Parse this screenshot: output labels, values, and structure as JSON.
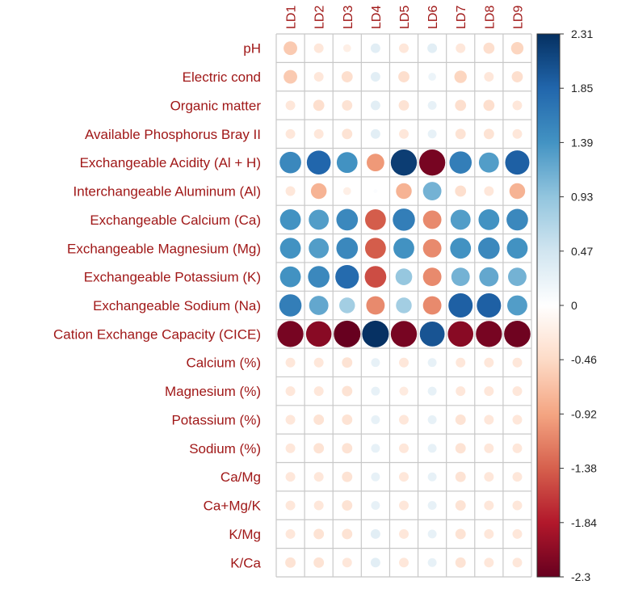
{
  "chart_data": {
    "type": "heatmap",
    "style": "corrplot-circle",
    "columns": [
      "LD1",
      "LD2",
      "LD3",
      "LD4",
      "LD5",
      "LD6",
      "LD7",
      "LD8",
      "LD9"
    ],
    "rows": [
      "pH",
      "Electric cond",
      "Organic matter",
      "Available Phosphorus Bray II",
      "Exchangeable Acidity (Al + H)",
      "Interchangeable Aluminum (Al)",
      "Exchangeable Calcium (Ca)",
      "Exchangeable Magnesium (Mg)",
      "Exchangeable Potassium (K)",
      "Exchangeable Sodium (Na)",
      "Cation Exchange Capacity (CICE)",
      "Calcium (%)",
      "Magnesium (%)",
      "Potassium (%)",
      "Sodium (%)",
      "Ca/Mg",
      "Ca+Mg/K",
      "K/Mg",
      "K/Ca"
    ],
    "values": [
      [
        -0.6,
        -0.3,
        -0.2,
        0.3,
        -0.3,
        0.3,
        -0.3,
        -0.4,
        -0.5
      ],
      [
        -0.6,
        -0.3,
        -0.4,
        0.3,
        -0.4,
        0.2,
        -0.5,
        -0.3,
        -0.4
      ],
      [
        -0.3,
        -0.4,
        -0.35,
        0.3,
        -0.35,
        0.25,
        -0.4,
        -0.4,
        -0.3
      ],
      [
        -0.3,
        -0.3,
        -0.35,
        0.3,
        -0.3,
        0.25,
        -0.35,
        -0.35,
        -0.3
      ],
      [
        1.5,
        1.85,
        1.4,
        -1.0,
        2.2,
        -2.2,
        1.6,
        1.3,
        1.9
      ],
      [
        -0.3,
        -0.8,
        -0.2,
        0.05,
        -0.8,
        1.1,
        -0.4,
        -0.3,
        -0.8
      ],
      [
        1.4,
        1.3,
        1.5,
        -1.4,
        1.6,
        -1.1,
        1.3,
        1.4,
        1.5
      ],
      [
        1.4,
        1.3,
        1.5,
        -1.4,
        1.4,
        -1.1,
        1.4,
        1.5,
        1.4
      ],
      [
        1.4,
        1.5,
        1.8,
        -1.5,
        0.9,
        -1.1,
        1.1,
        1.2,
        1.1
      ],
      [
        1.6,
        1.2,
        0.8,
        -1.1,
        0.8,
        -1.1,
        1.9,
        1.9,
        1.3
      ],
      [
        -2.2,
        -2.1,
        -2.3,
        2.3,
        -2.2,
        2.0,
        -2.1,
        -2.2,
        -2.25
      ],
      [
        -0.3,
        -0.3,
        -0.35,
        0.25,
        -0.3,
        0.25,
        -0.3,
        -0.3,
        -0.3
      ],
      [
        -0.3,
        -0.3,
        -0.35,
        0.25,
        -0.25,
        0.25,
        -0.3,
        -0.3,
        -0.3
      ],
      [
        -0.3,
        -0.35,
        -0.35,
        0.25,
        -0.3,
        0.25,
        -0.35,
        -0.3,
        -0.3
      ],
      [
        -0.3,
        -0.35,
        -0.35,
        0.25,
        -0.3,
        0.25,
        -0.35,
        -0.3,
        -0.3
      ],
      [
        -0.3,
        -0.3,
        -0.35,
        0.25,
        -0.3,
        0.25,
        -0.35,
        -0.3,
        -0.3
      ],
      [
        -0.3,
        -0.3,
        -0.35,
        0.25,
        -0.3,
        0.25,
        -0.35,
        -0.3,
        -0.3
      ],
      [
        -0.3,
        -0.35,
        -0.35,
        0.3,
        -0.3,
        0.25,
        -0.35,
        -0.3,
        -0.3
      ],
      [
        -0.35,
        -0.35,
        -0.3,
        0.3,
        -0.3,
        0.25,
        -0.35,
        -0.3,
        -0.3
      ]
    ],
    "colorbar": {
      "range": [
        -2.3,
        2.31
      ],
      "ticks": [
        "2.31",
        "1.85",
        "1.39",
        "0.93",
        "0.47",
        "0",
        "-0.46",
        "-0.92",
        "-1.38",
        "-1.84",
        "-2.3"
      ]
    },
    "colors": [
      "#67001F",
      "#B2182B",
      "#D6604D",
      "#F4A582",
      "#FDDBC7",
      "#FFFFFF",
      "#D1E5F0",
      "#92C5DE",
      "#4393C3",
      "#2166AC",
      "#053061"
    ],
    "legend": "right"
  }
}
